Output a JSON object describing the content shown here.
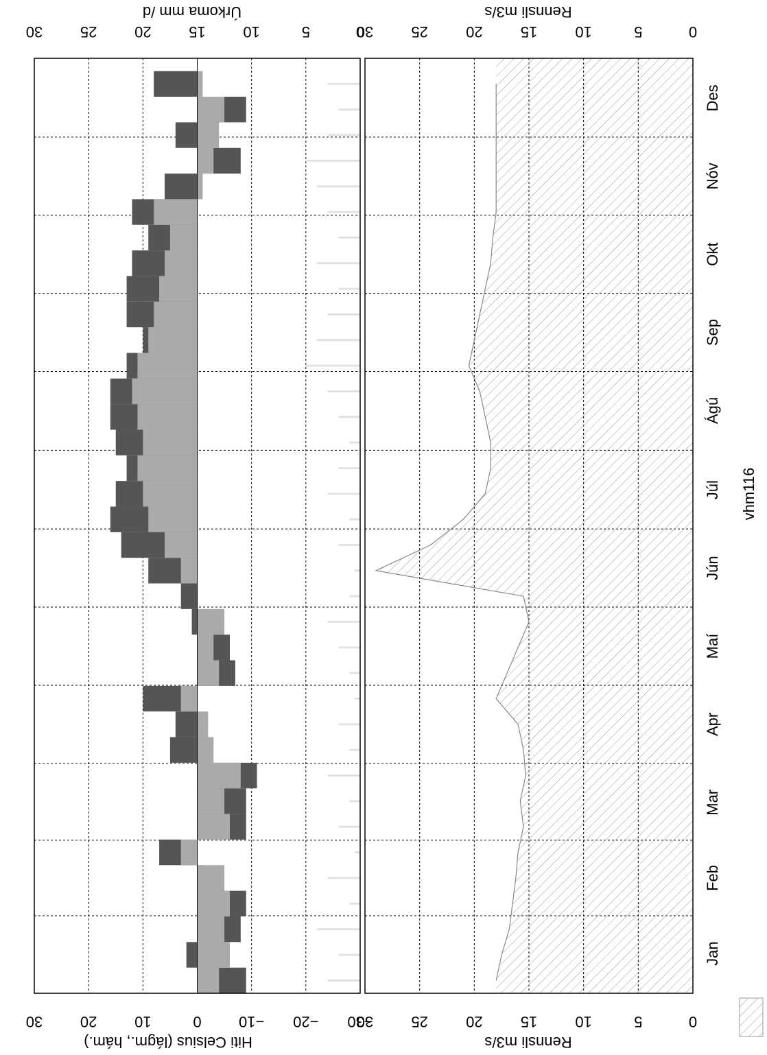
{
  "chart_data": [
    {
      "type": "bar",
      "ylabel": "Hiti Celsius  (lágm., hám.)",
      "y2label": "Úrkoma  mm /d",
      "xlim": [
        0,
        365
      ],
      "xticks": [
        {
          "value": 15.5,
          "label": "Jan"
        },
        {
          "value": 45,
          "label": "Feb"
        },
        {
          "value": 74.5,
          "label": "Mar"
        },
        {
          "value": 105,
          "label": "Apr"
        },
        {
          "value": 135.5,
          "label": "Maí"
        },
        {
          "value": 166,
          "label": "Jún"
        },
        {
          "value": 196.5,
          "label": "Júl"
        },
        {
          "value": 227.5,
          "label": "Ágú"
        },
        {
          "value": 258,
          "label": "Sep"
        },
        {
          "value": 288.5,
          "label": "Okt"
        },
        {
          "value": 319,
          "label": "Nóv"
        },
        {
          "value": 349.5,
          "label": "Des"
        }
      ],
      "x": [
        5,
        15,
        25,
        35,
        45,
        55,
        65,
        75,
        85,
        95,
        105,
        115,
        125,
        135,
        145,
        155,
        165,
        175,
        185,
        195,
        205,
        215,
        225,
        235,
        245,
        255,
        265,
        275,
        285,
        295,
        305,
        315,
        325,
        335,
        345,
        355
      ],
      "ylim": [
        -30,
        30
      ],
      "yticks": [
        30,
        20,
        10,
        0,
        {
          "value": -10,
          "label": "−10"
        },
        {
          "value": -20,
          "label": "−20"
        },
        {
          "value": -30,
          "label": "−30"
        }
      ],
      "y2lim": [
        0,
        30
      ],
      "y2ticks": [
        0,
        5,
        10,
        15,
        20,
        25,
        30
      ],
      "grid": true,
      "series": [
        {
          "color": "#555555",
          "values": [
            -9,
            2,
            -8,
            -9,
            -1,
            7,
            -9,
            -9,
            -11,
            5,
            4,
            10,
            -7,
            -6,
            1,
            3,
            9,
            14,
            16,
            15,
            13,
            15,
            16,
            16,
            13,
            10,
            13,
            13,
            12,
            9,
            12,
            6,
            -8,
            4,
            -9,
            8
          ]
        },
        {
          "color": "#aaaaaa",
          "values": [
            -4,
            -6,
            -5,
            -6,
            -5,
            3,
            -6,
            -5,
            -8,
            -3,
            -2,
            3,
            -4,
            -3,
            -5,
            0,
            3,
            6,
            9,
            10,
            11,
            10,
            11,
            12,
            11,
            9,
            8,
            7,
            6,
            5,
            8,
            -1,
            -3,
            -4,
            -5,
            -1
          ]
        },
        {
          "color": "#e2e2e2",
          "axis": "y2",
          "values": [
            3,
            2,
            4,
            1,
            3,
            0.5,
            2,
            1,
            3,
            1,
            2,
            0.5,
            1,
            2,
            3,
            1,
            0.5,
            2,
            1,
            3,
            2,
            1,
            2,
            3,
            5,
            4,
            3,
            2,
            4,
            2,
            3,
            4,
            5,
            3,
            2,
            3
          ]
        }
      ]
    },
    {
      "type": "area",
      "ylabel": "Rennsli  m3/s",
      "xlim": [
        0,
        365
      ],
      "x": [
        5,
        15,
        25,
        35,
        45,
        55,
        65,
        75,
        85,
        95,
        105,
        115,
        125,
        135,
        145,
        155,
        165,
        175,
        185,
        195,
        205,
        215,
        225,
        235,
        245,
        255,
        265,
        275,
        285,
        295,
        305,
        315,
        325,
        335,
        345,
        355
      ],
      "ylim": [
        0,
        30
      ],
      "yticks": [
        0,
        5,
        10,
        15,
        20,
        25,
        30
      ],
      "grid": true,
      "legend": "bottom",
      "series": [
        {
          "name": "vhm116",
          "color": "#888888",
          "values": [
            18,
            17.5,
            16.8,
            16.5,
            16.2,
            16,
            15.5,
            15.8,
            15.3,
            15.5,
            16,
            18,
            17,
            16,
            15,
            15.5,
            29,
            24,
            21,
            19,
            18.5,
            18.5,
            19,
            19.5,
            20.5,
            20,
            19.5,
            19,
            18.5,
            18.3,
            18,
            18,
            18,
            18,
            18,
            18
          ]
        }
      ]
    }
  ]
}
